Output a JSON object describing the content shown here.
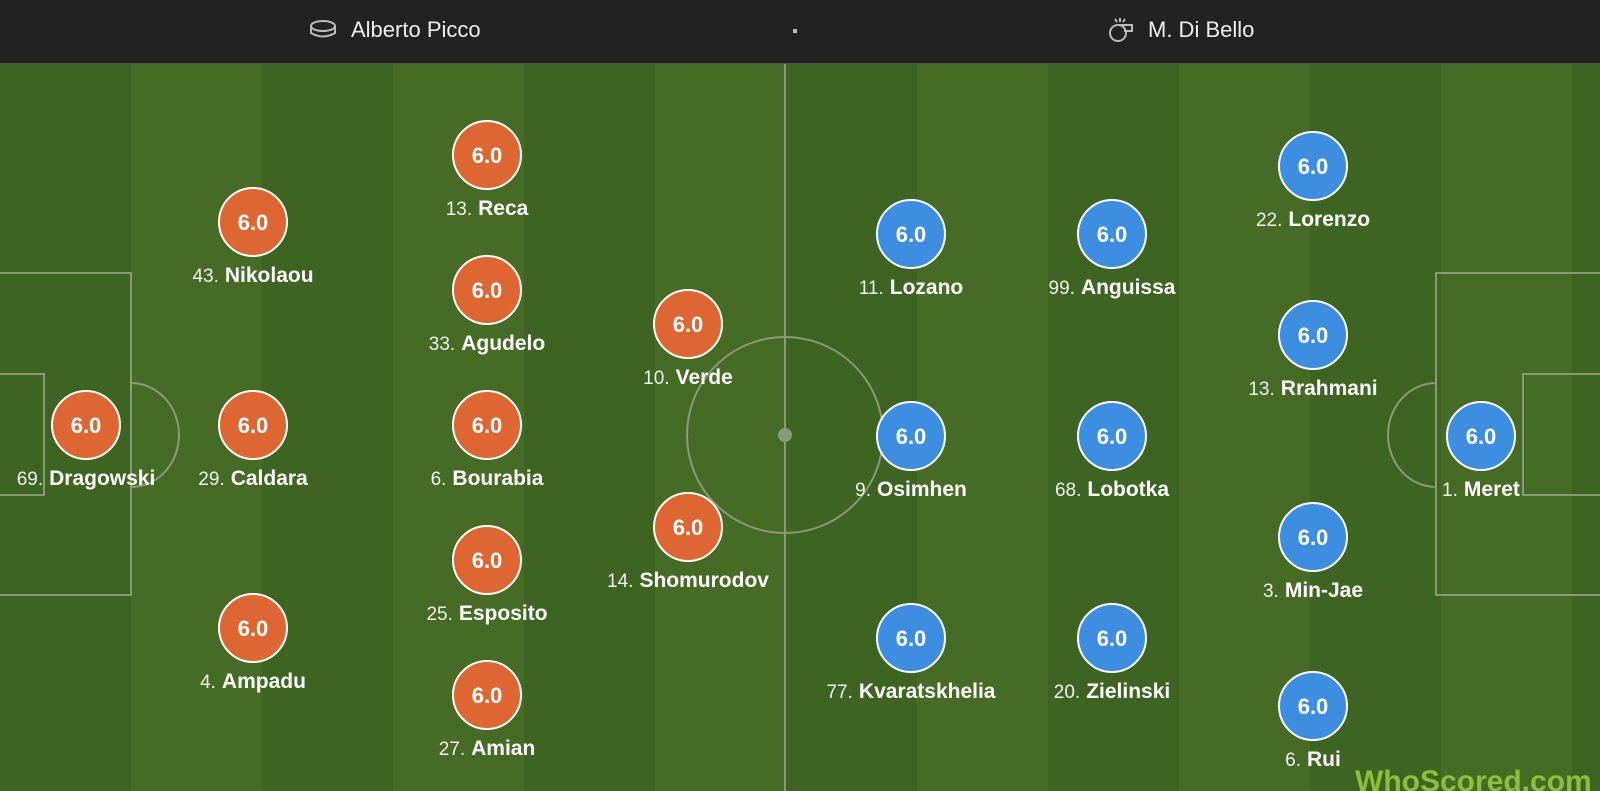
{
  "header": {
    "venue": "Alberto Picco",
    "referee": "M. Di Bello"
  },
  "home": {
    "players": [
      {
        "number": "69.",
        "name": "Dragowski",
        "rating": "6.0"
      },
      {
        "number": "43.",
        "name": "Nikolaou",
        "rating": "6.0"
      },
      {
        "number": "29.",
        "name": "Caldara",
        "rating": "6.0"
      },
      {
        "number": "4.",
        "name": "Ampadu",
        "rating": "6.0"
      },
      {
        "number": "13.",
        "name": "Reca",
        "rating": "6.0"
      },
      {
        "number": "33.",
        "name": "Agudelo",
        "rating": "6.0"
      },
      {
        "number": "6.",
        "name": "Bourabia",
        "rating": "6.0"
      },
      {
        "number": "25.",
        "name": "Esposito",
        "rating": "6.0"
      },
      {
        "number": "27.",
        "name": "Amian",
        "rating": "6.0"
      },
      {
        "number": "10.",
        "name": "Verde",
        "rating": "6.0"
      },
      {
        "number": "14.",
        "name": "Shomurodov",
        "rating": "6.0"
      }
    ]
  },
  "away": {
    "players": [
      {
        "number": "11.",
        "name": "Lozano",
        "rating": "6.0"
      },
      {
        "number": "9.",
        "name": "Osimhen",
        "rating": "6.0"
      },
      {
        "number": "77.",
        "name": "Kvaratskhelia",
        "rating": "6.0"
      },
      {
        "number": "99.",
        "name": "Anguissa",
        "rating": "6.0"
      },
      {
        "number": "68.",
        "name": "Lobotka",
        "rating": "6.0"
      },
      {
        "number": "20.",
        "name": "Zielinski",
        "rating": "6.0"
      },
      {
        "number": "22.",
        "name": "Lorenzo",
        "rating": "6.0"
      },
      {
        "number": "13.",
        "name": "Rrahmani",
        "rating": "6.0"
      },
      {
        "number": "3.",
        "name": "Min-Jae",
        "rating": "6.0"
      },
      {
        "number": "6.",
        "name": "Rui",
        "rating": "6.0"
      },
      {
        "number": "1.",
        "name": "Meret",
        "rating": "6.0"
      }
    ]
  },
  "watermark": "WhoScored.com"
}
